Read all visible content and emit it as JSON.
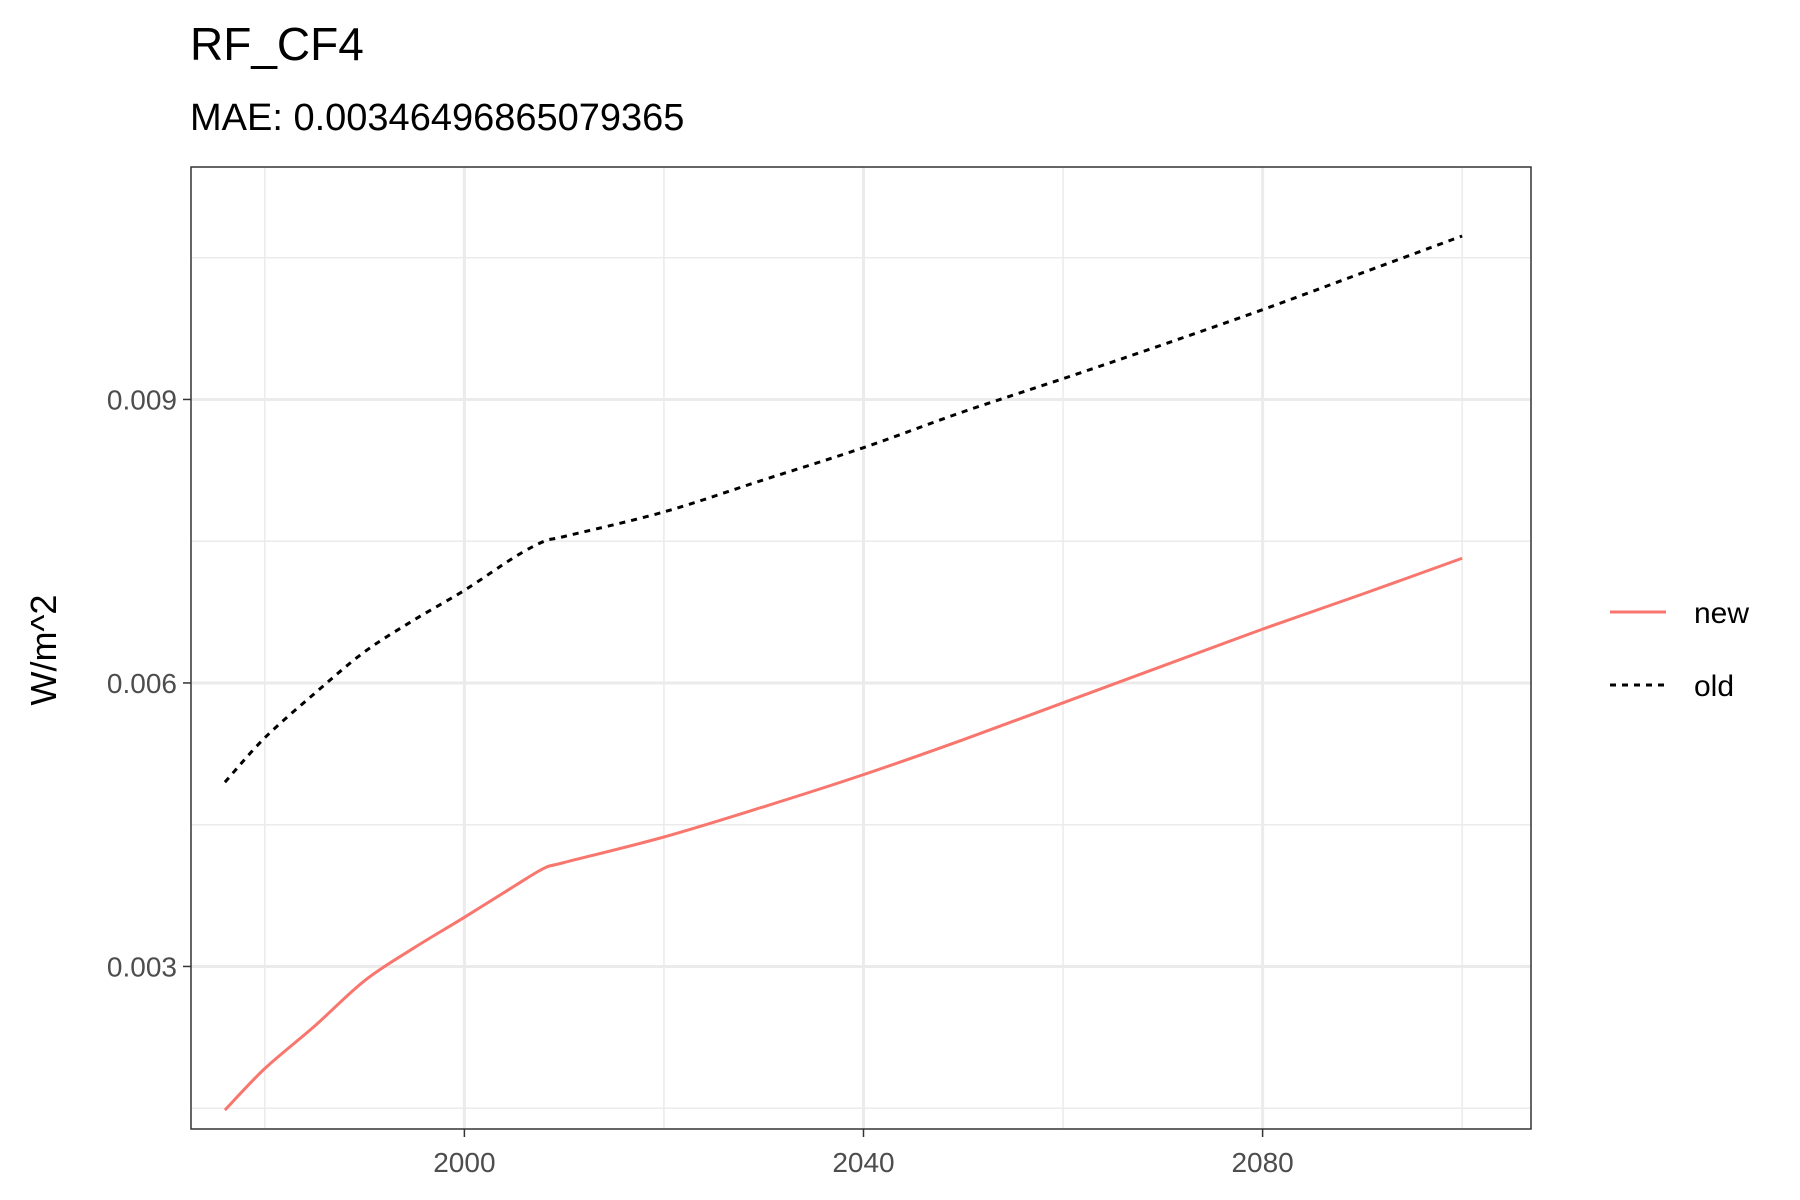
{
  "chart_data": {
    "type": "line",
    "title": "RF_CF4",
    "subtitle": "MAE: 0.00346496865079365",
    "xlabel": "",
    "ylabel": "W/m^2",
    "xlim": [
      1972.6,
      2106.9
    ],
    "ylim": [
      0.00128,
      0.01146
    ],
    "x_ticks": [
      2000,
      2040,
      2080
    ],
    "x_tick_labels": [
      "2000",
      "2040",
      "2080"
    ],
    "x_minor_ticks": [
      1980,
      2020,
      2060,
      2100
    ],
    "y_ticks": [
      0.003,
      0.006,
      0.009
    ],
    "y_tick_labels": [
      "0.003",
      "0.006",
      "0.009"
    ],
    "y_minor_ticks": [
      0.0015,
      0.0045,
      0.0075,
      0.0105
    ],
    "grid": true,
    "legend_position": "right",
    "series": [
      {
        "name": "new",
        "color": "#F8766D",
        "dash": "solid",
        "x": [
          1976,
          1980,
          1985,
          1990,
          1995,
          2000,
          2005,
          2008,
          2010,
          2020,
          2030,
          2040,
          2050,
          2060,
          2070,
          2080,
          2090,
          2100
        ],
        "y": [
          0.00148,
          0.00192,
          0.00237,
          0.00285,
          0.0032,
          0.00352,
          0.00385,
          0.00404,
          0.0041,
          0.00437,
          0.00469,
          0.00503,
          0.0054,
          0.00579,
          0.00618,
          0.00657,
          0.00694,
          0.00732
        ]
      },
      {
        "name": "old",
        "color": "#000000",
        "dash": "dotted",
        "x": [
          1976,
          1980,
          1985,
          1990,
          1995,
          2000,
          2005,
          2008,
          2010,
          2020,
          2030,
          2040,
          2050,
          2060,
          2070,
          2080,
          2090,
          2100
        ],
        "y": [
          0.00495,
          0.00542,
          0.00589,
          0.00633,
          0.00667,
          0.00698,
          0.00733,
          0.0075,
          0.00755,
          0.00781,
          0.00815,
          0.00849,
          0.00887,
          0.00922,
          0.00958,
          0.00995,
          0.01034,
          0.01073
        ]
      }
    ]
  }
}
